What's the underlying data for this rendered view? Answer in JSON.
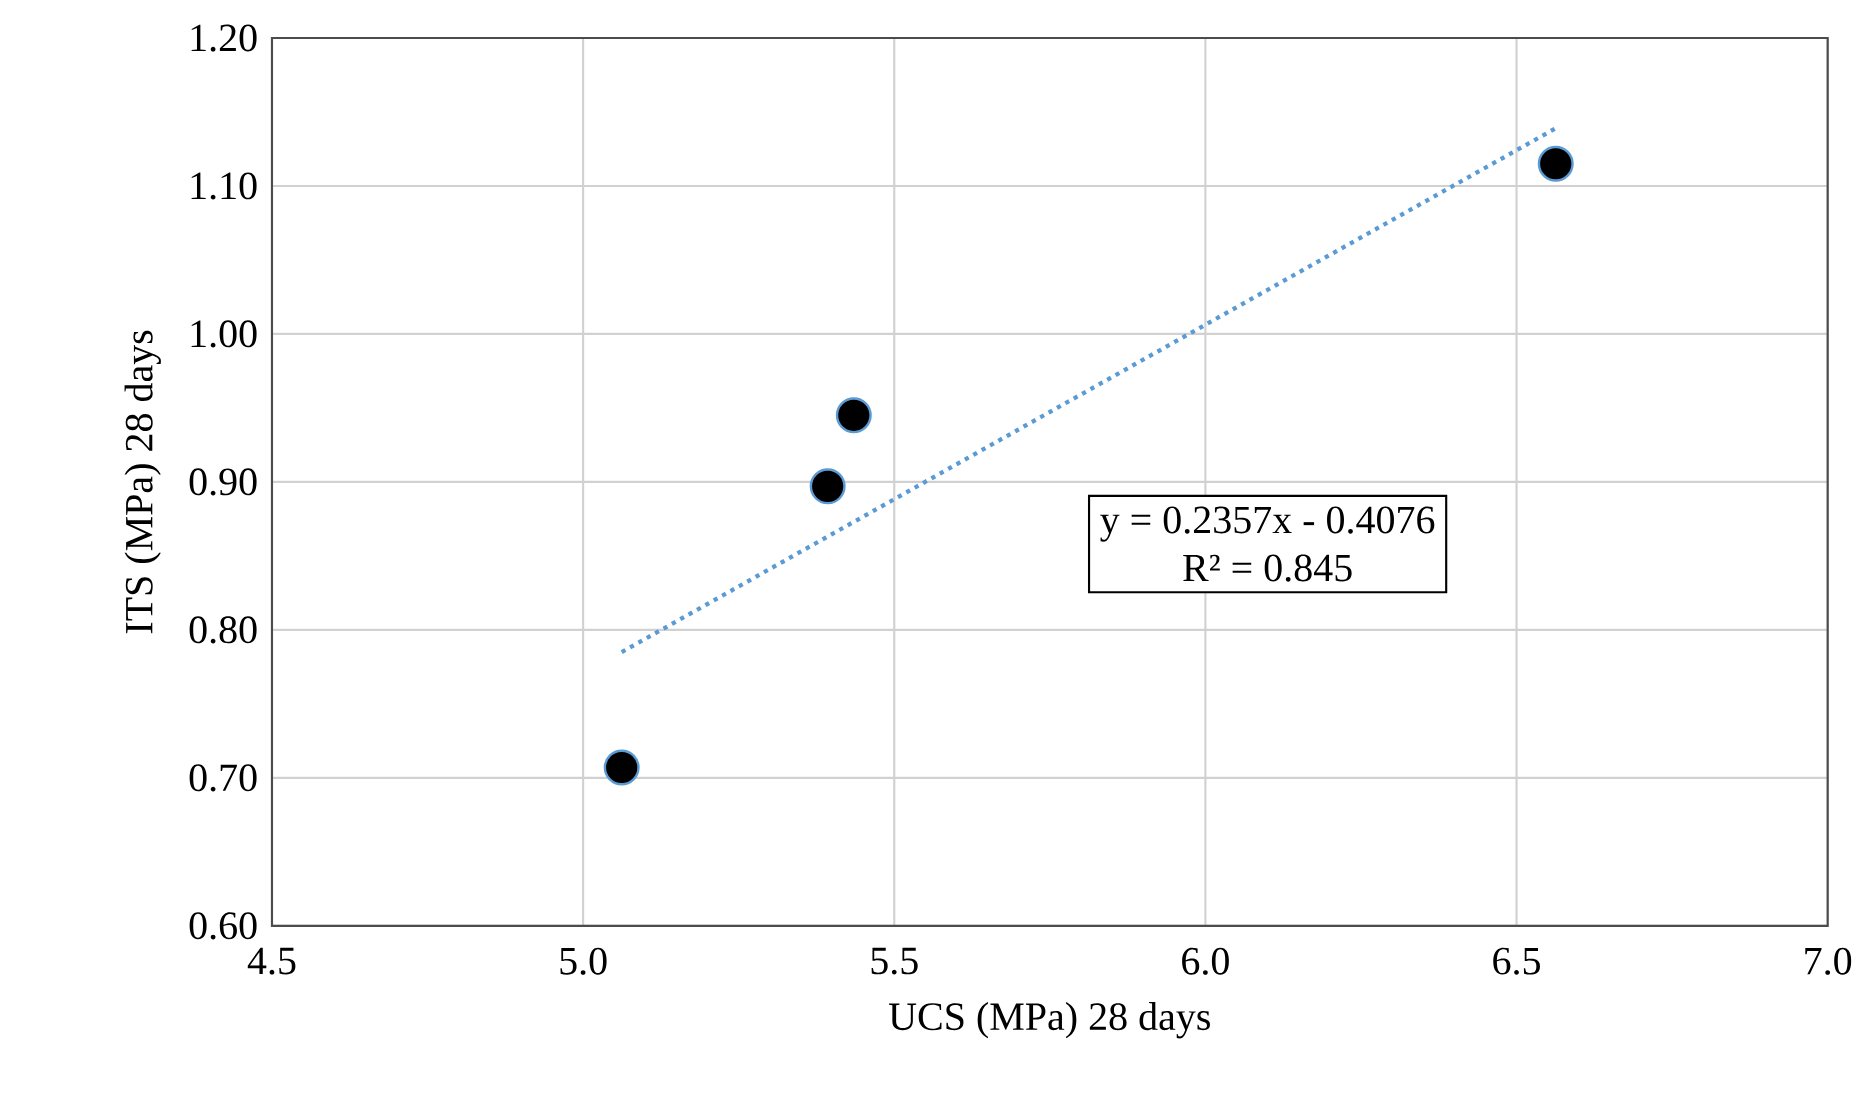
{
  "chart_data": {
    "type": "scatter",
    "xlabel": "UCS (MPa) 28 days",
    "ylabel": "ITS (MPa) 28 days",
    "xlim": [
      4.5,
      7.0
    ],
    "ylim": [
      0.6,
      1.2
    ],
    "xticks": [
      {
        "value": 4.5,
        "label": "4.5"
      },
      {
        "value": 5.0,
        "label": "5.0"
      },
      {
        "value": 5.5,
        "label": "5.5"
      },
      {
        "value": 6.0,
        "label": "6.0"
      },
      {
        "value": 6.5,
        "label": "6.5"
      },
      {
        "value": 7.0,
        "label": "7.0"
      }
    ],
    "yticks": [
      {
        "value": 0.6,
        "label": "0.60"
      },
      {
        "value": 0.7,
        "label": "0.70"
      },
      {
        "value": 0.8,
        "label": "0.80"
      },
      {
        "value": 0.9,
        "label": "0.90"
      },
      {
        "value": 1.0,
        "label": "1.00"
      },
      {
        "value": 1.1,
        "label": "1.10"
      },
      {
        "value": 1.2,
        "label": "1.20"
      }
    ],
    "grid": true,
    "marker": "circle",
    "series": [
      {
        "type": "scatter",
        "color": "#000000",
        "x": [
          5.062,
          5.393,
          5.435,
          6.563
        ],
        "values": [
          0.707,
          0.897,
          0.945,
          1.115
        ]
      },
      {
        "type": "line",
        "color": "#5b9bd5",
        "line_style": "dotted",
        "marker": "none",
        "x": [
          5.062,
          6.563
        ],
        "values": [
          0.785,
          1.139
        ]
      }
    ],
    "annotations": [
      "y = 0.2357x - 0.4076",
      "R² = 0.845"
    ]
  }
}
